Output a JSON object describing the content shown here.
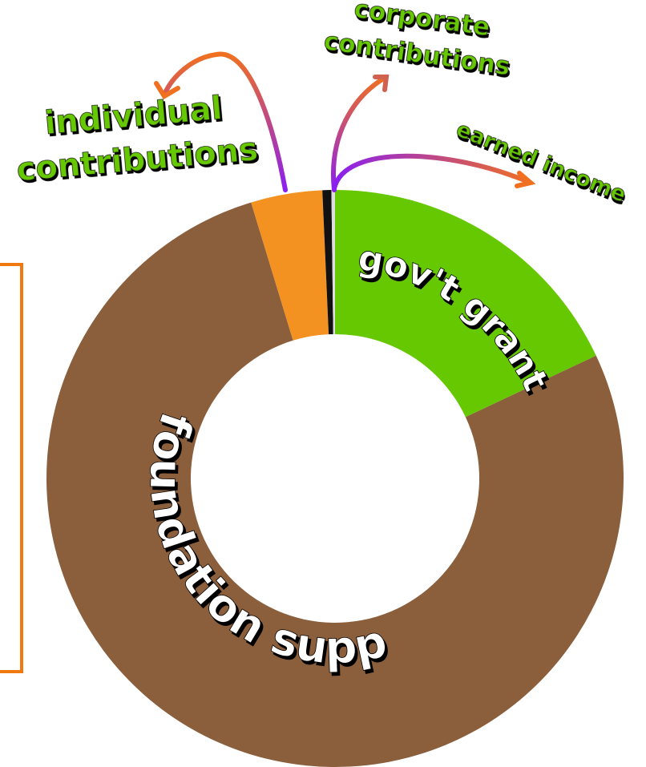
{
  "chart_data": {
    "type": "donut",
    "categories": [
      "gov't grants",
      "foundation support",
      "individual contributions",
      "corporate contributions",
      "earned income"
    ],
    "values": [
      18,
      77.3,
      4,
      0.5,
      0.2
    ],
    "colors": [
      "#66c800",
      "#8b5e3c",
      "#f39220",
      "#111111",
      "#dddddd"
    ]
  }
}
